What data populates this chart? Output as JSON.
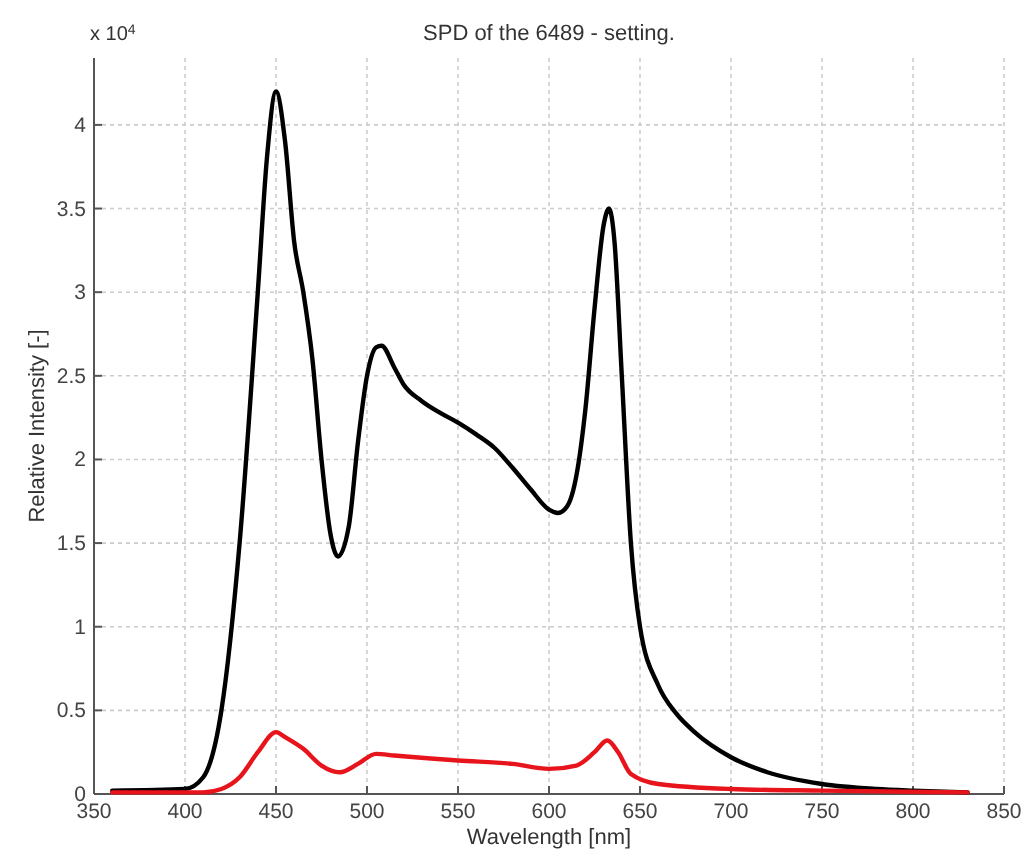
{
  "chart_data": {
    "type": "line",
    "title": "SPD of the 6489 - setting.",
    "xlabel": "Wavelength [nm]",
    "ylabel": "Relative Intensity [-]",
    "annotations": [
      "x 10$^{4}$"
    ],
    "xlim": [
      350,
      850
    ],
    "xticks": [
      350,
      400,
      450,
      500,
      550,
      600,
      650,
      700,
      750,
      800,
      850
    ],
    "ylim": [
      0,
      4.4
    ],
    "yticks": [
      0,
      0.5,
      1,
      1.5,
      2,
      2.5,
      3,
      3.5,
      4
    ],
    "grid": true,
    "line_style": "solid",
    "marker": "none",
    "series": [
      {
        "color": "#000000",
        "x": [
          360,
          400,
          410,
          420,
          430,
          440,
          445,
          450,
          455,
          460,
          465,
          470,
          475,
          480,
          484,
          490,
          495,
          500,
          505,
          508,
          515,
          520,
          530,
          540,
          550,
          560,
          570,
          580,
          590,
          600,
          605,
          610,
          615,
          620,
          625,
          630,
          633,
          636,
          640,
          645,
          650,
          660,
          670,
          680,
          700,
          720,
          750,
          780,
          800,
          830
        ],
        "values": [
          0.02,
          0.03,
          0.1,
          0.5,
          1.5,
          3.0,
          3.8,
          4.2,
          3.9,
          3.3,
          3.0,
          2.6,
          2.0,
          1.55,
          1.42,
          1.6,
          2.1,
          2.5,
          2.67,
          2.68,
          2.55,
          2.45,
          2.35,
          2.28,
          2.22,
          2.15,
          2.07,
          1.95,
          1.82,
          1.7,
          1.68,
          1.72,
          1.9,
          2.3,
          2.9,
          3.4,
          3.5,
          3.3,
          2.5,
          1.5,
          1.0,
          0.65,
          0.48,
          0.37,
          0.22,
          0.13,
          0.06,
          0.03,
          0.02,
          0.01
        ]
      },
      {
        "color": "#e8141b",
        "x": [
          360,
          410,
          420,
          430,
          440,
          450,
          455,
          465,
          475,
          485,
          495,
          505,
          515,
          550,
          580,
          600,
          615,
          625,
          632,
          638,
          645,
          660,
          700,
          750,
          830
        ],
        "values": [
          0.01,
          0.01,
          0.03,
          0.1,
          0.25,
          0.37,
          0.34,
          0.27,
          0.17,
          0.13,
          0.18,
          0.24,
          0.23,
          0.2,
          0.18,
          0.15,
          0.17,
          0.25,
          0.32,
          0.25,
          0.12,
          0.06,
          0.03,
          0.02,
          0.01
        ]
      }
    ]
  }
}
